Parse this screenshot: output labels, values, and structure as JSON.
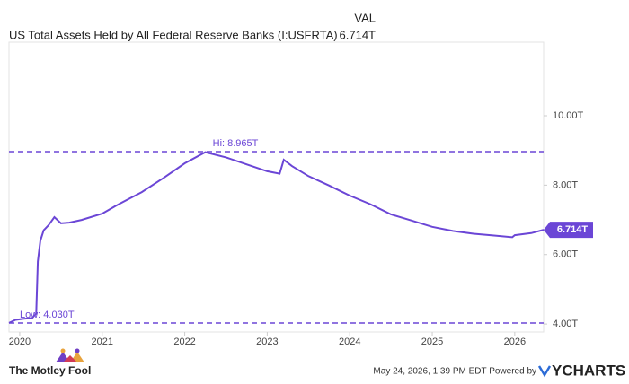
{
  "chart_data": {
    "type": "line",
    "title": "US Total Assets Held by All Federal Reserve Banks (I:USFRTA)",
    "value_header": "VAL",
    "last_value": {
      "value": 6.714,
      "label": "6.714T"
    },
    "high": {
      "value": 8.965,
      "label": "Hi: 8.965T"
    },
    "low": {
      "value": 4.03,
      "label": "Low: 4.030T"
    },
    "color": "#6b46d6",
    "x": [
      2019.87,
      2019.95,
      2020.05,
      2020.15,
      2020.2,
      2020.22,
      2020.25,
      2020.29,
      2020.35,
      2020.42,
      2020.5,
      2020.6,
      2020.75,
      2021.0,
      2021.2,
      2021.48,
      2021.75,
      2022.0,
      2022.25,
      2022.5,
      2022.75,
      2023.0,
      2023.15,
      2023.2,
      2023.3,
      2023.5,
      2023.75,
      2024.0,
      2024.25,
      2024.5,
      2024.75,
      2025.0,
      2025.25,
      2025.5,
      2025.75,
      2025.97,
      2026.0,
      2026.2,
      2026.35
    ],
    "values": [
      4.03,
      4.12,
      4.15,
      4.17,
      4.3,
      5.8,
      6.4,
      6.7,
      6.85,
      7.08,
      6.9,
      6.92,
      7.0,
      7.18,
      7.45,
      7.8,
      8.22,
      8.63,
      8.95,
      8.8,
      8.6,
      8.4,
      8.33,
      8.73,
      8.55,
      8.26,
      7.99,
      7.7,
      7.45,
      7.16,
      6.98,
      6.8,
      6.68,
      6.6,
      6.55,
      6.5,
      6.56,
      6.62,
      6.714
    ],
    "xlim": [
      2019.87,
      2026.35
    ],
    "xticks": [
      2020,
      2021,
      2022,
      2023,
      2024,
      2025,
      2026
    ],
    "ylim": [
      3.77,
      12.12
    ],
    "yticks": [
      {
        "value": 4,
        "label": "4.00T"
      },
      {
        "value": 6,
        "label": "6.00T"
      },
      {
        "value": 8,
        "label": "8.00T"
      },
      {
        "value": 10,
        "label": "10.00T"
      }
    ],
    "date_note": "May 24, 2026, 1:39 PM EDT Powered by",
    "brand_left": "The Motley Fool",
    "brand_right": "YCHARTS"
  }
}
